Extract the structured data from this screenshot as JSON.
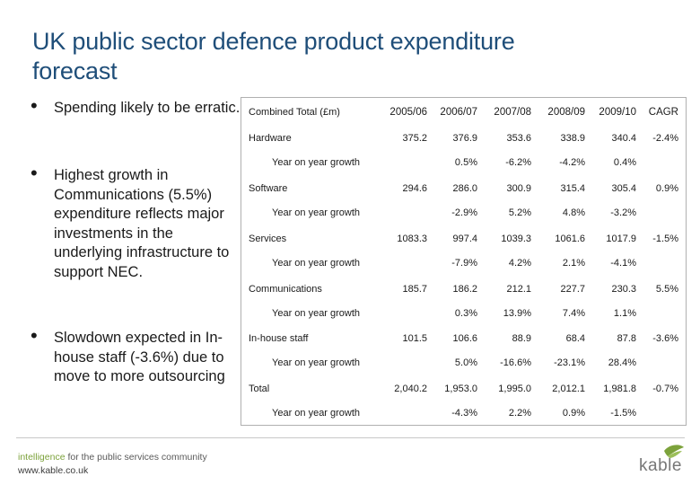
{
  "title": "UK public sector defence product expenditure forecast",
  "bullets": [
    {
      "text": "Spending likely to be erratic."
    },
    {
      "text": "Highest growth in Communications (5.5%) expenditure reflects major investments in the underlying infrastructure to support NEC."
    },
    {
      "text": "Slowdown expected in In-house staff (-3.6%) due to move to more outsourcing"
    }
  ],
  "table": {
    "header_label": "Combined Total (£m)",
    "columns": [
      "2005/06",
      "2006/07",
      "2007/08",
      "2008/09",
      "2009/10",
      "CAGR"
    ],
    "yoy_label": "Year on year growth",
    "rows": [
      {
        "name": "Hardware",
        "values": [
          "375.2",
          "376.9",
          "353.6",
          "338.9",
          "340.4"
        ],
        "cagr": "-2.4%",
        "yoy": [
          "0.5%",
          "-6.2%",
          "-4.2%",
          "0.4%"
        ]
      },
      {
        "name": "Software",
        "values": [
          "294.6",
          "286.0",
          "300.9",
          "315.4",
          "305.4"
        ],
        "cagr": "0.9%",
        "yoy": [
          "-2.9%",
          "5.2%",
          "4.8%",
          "-3.2%"
        ]
      },
      {
        "name": "Services",
        "values": [
          "1083.3",
          "997.4",
          "1039.3",
          "1061.6",
          "1017.9"
        ],
        "cagr": "-1.5%",
        "yoy": [
          "-7.9%",
          "4.2%",
          "2.1%",
          "-4.1%"
        ]
      },
      {
        "name": "Communications",
        "values": [
          "185.7",
          "186.2",
          "212.1",
          "227.7",
          "230.3"
        ],
        "cagr": "5.5%",
        "yoy": [
          "0.3%",
          "13.9%",
          "7.4%",
          "1.1%"
        ]
      },
      {
        "name": "In-house staff",
        "values": [
          "101.5",
          "106.6",
          "88.9",
          "68.4",
          "87.8"
        ],
        "cagr": "-3.6%",
        "yoy": [
          "5.0%",
          "-16.6%",
          "-23.1%",
          "28.4%"
        ]
      },
      {
        "name": "Total",
        "values": [
          "2,040.2",
          "1,953.0",
          "1,995.0",
          "2,012.1",
          "1,981.8"
        ],
        "cagr": "-0.7%",
        "yoy": [
          "-4.3%",
          "2.2%",
          "0.9%",
          "-1.5%"
        ]
      }
    ]
  },
  "footer": {
    "tagline_intelligence": "intelligence",
    "tagline_rest": " for the public services community",
    "url": "www.kable.co.uk",
    "logo_text": "kable",
    "brand_color": "#7ca23b"
  }
}
